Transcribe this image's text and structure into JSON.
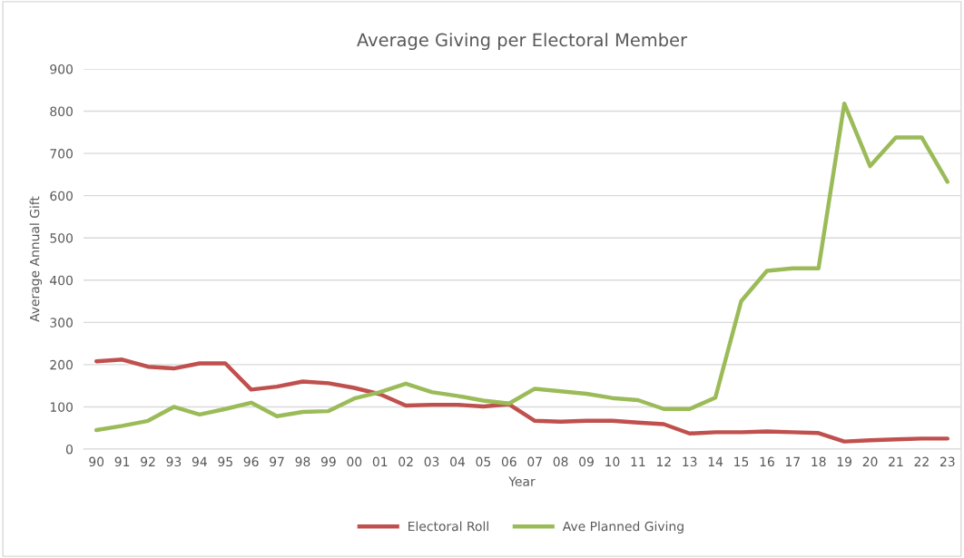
{
  "chart_data": {
    "type": "line",
    "title": "Average Giving per Electoral Member",
    "xlabel": "Year",
    "ylabel": "Average Annual Gift",
    "categories": [
      "90",
      "91",
      "92",
      "93",
      "94",
      "95",
      "96",
      "97",
      "98",
      "99",
      "00",
      "01",
      "02",
      "03",
      "04",
      "05",
      "06",
      "07",
      "08",
      "09",
      "10",
      "11",
      "12",
      "13",
      "14",
      "15",
      "16",
      "17",
      "18",
      "19",
      "20",
      "21",
      "22",
      "23"
    ],
    "series": [
      {
        "name": "Electoral Roll",
        "color": "#c0504d",
        "values": [
          208,
          212,
          195,
          191,
          203,
          203,
          141,
          148,
          160,
          156,
          145,
          130,
          103,
          105,
          105,
          101,
          106,
          67,
          65,
          67,
          67,
          63,
          59,
          37,
          40,
          40,
          42,
          40,
          38,
          18,
          21,
          23,
          25,
          25
        ]
      },
      {
        "name": "Ave Planned Giving",
        "color": "#9bbb59",
        "values": [
          45,
          55,
          67,
          100,
          82,
          95,
          110,
          78,
          88,
          90,
          120,
          135,
          155,
          135,
          126,
          115,
          108,
          143,
          137,
          131,
          121,
          116,
          95,
          95,
          122,
          350,
          422,
          428,
          428,
          818,
          670,
          738,
          738,
          633
        ]
      }
    ],
    "ylim": [
      0,
      900
    ],
    "yticks": [
      0,
      100,
      200,
      300,
      400,
      500,
      600,
      700,
      800,
      900
    ],
    "grid": "y",
    "legend": "bottom",
    "marker": "none",
    "line_style": "solid"
  }
}
